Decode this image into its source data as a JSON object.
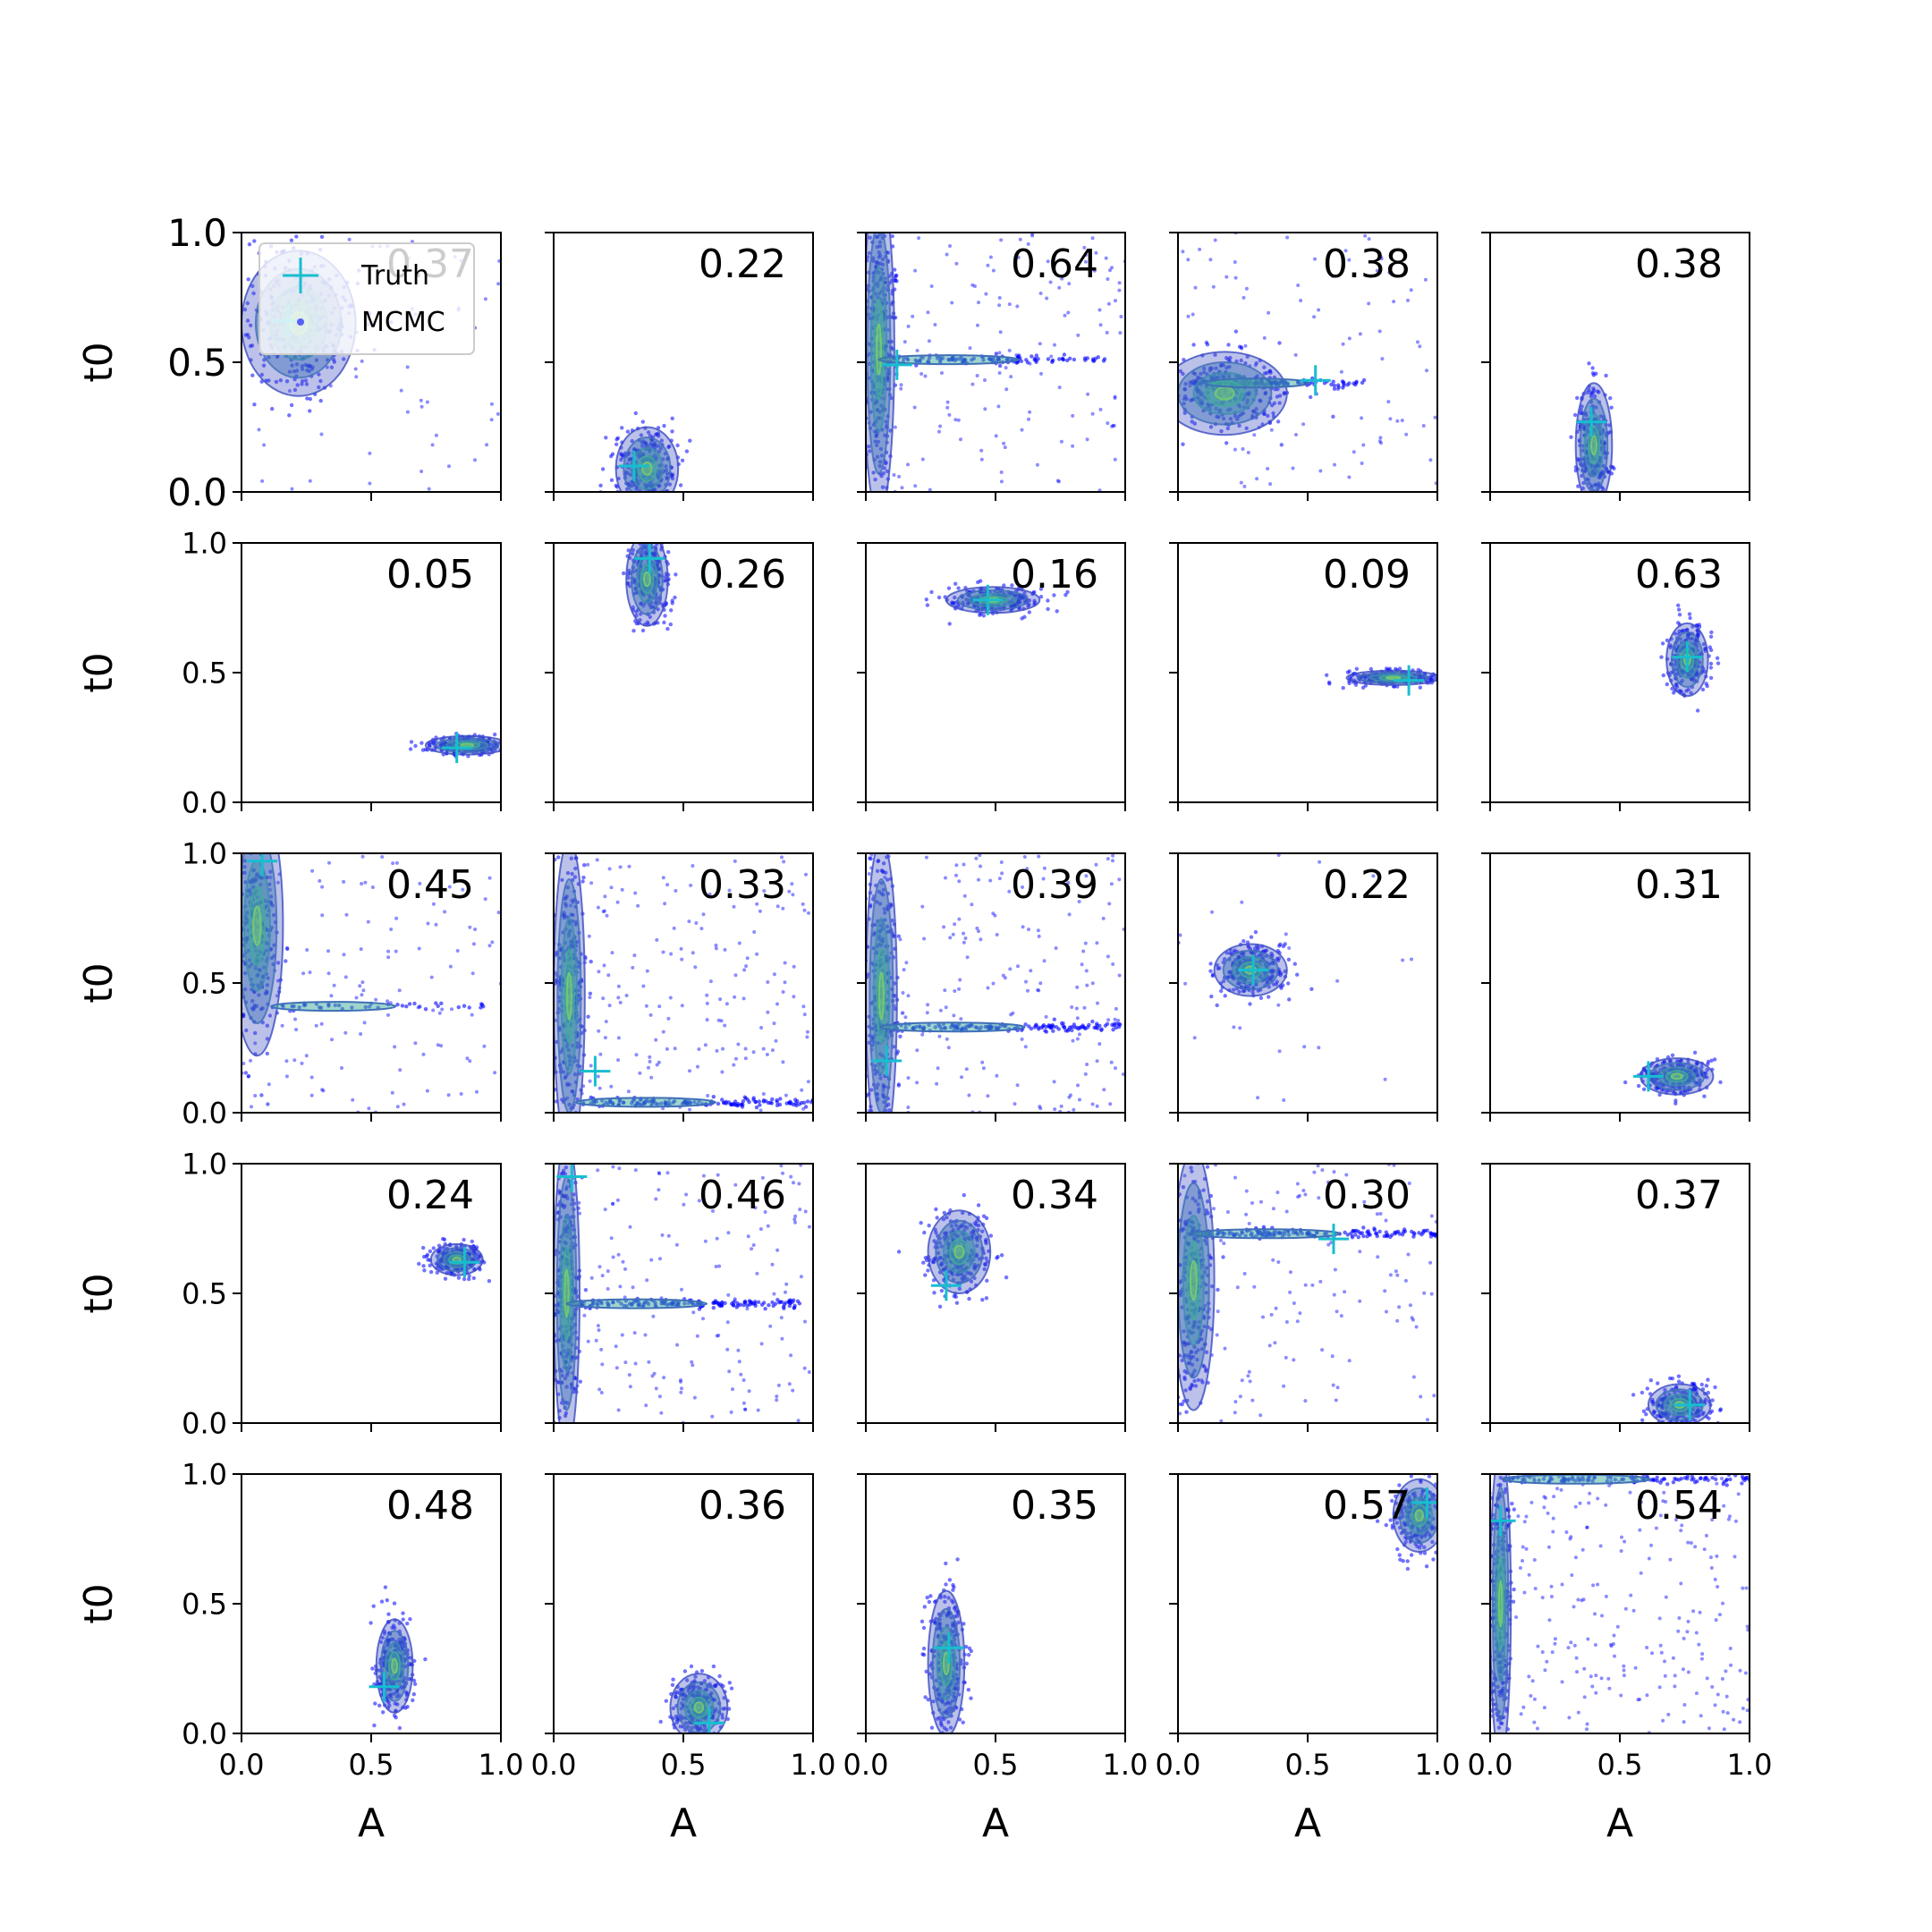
{
  "figure": {
    "background": "#ffffff",
    "grid_rows": 5,
    "grid_cols": 5,
    "shared_x": "columns",
    "shared_y": "rows"
  },
  "legend": {
    "placement": "upper-left of first panel",
    "entries": [
      {
        "label": "Truth",
        "marker": "plus",
        "color": "#17becf"
      },
      {
        "label": "MCMC",
        "marker": "dot",
        "color": "#0000ff"
      }
    ]
  },
  "colors": {
    "samples": "#0000ff",
    "truth": "#17becf",
    "density_outer": "#3b4cc0",
    "density_inner": "#44c48a"
  },
  "chart_data": {
    "type": "scatter",
    "xlabel": "A",
    "ylabel": "t0",
    "xlim": [
      0,
      1
    ],
    "ylim": [
      0,
      1
    ],
    "xticks": [
      "0.0",
      "0.5",
      "1.0"
    ],
    "yticks": [
      "0.0",
      "0.5",
      "1.0"
    ],
    "panels": [
      {
        "row": 0,
        "col": 0,
        "score": "0.37",
        "truth": [
          0.18,
          0.66
        ],
        "cluster": {
          "cx": 0.22,
          "cy": 0.65,
          "sx": 0.11,
          "sy": 0.14,
          "n": 320
        },
        "scatter_seed": 11,
        "scatter_n": 60
      },
      {
        "row": 0,
        "col": 1,
        "score": "0.22",
        "truth": [
          0.31,
          0.1
        ],
        "cluster": {
          "cx": 0.36,
          "cy": 0.09,
          "sx": 0.06,
          "sy": 0.08,
          "n": 280
        },
        "scatter_seed": 12,
        "scatter_n": 0
      },
      {
        "row": 0,
        "col": 2,
        "score": "0.64",
        "truth": [
          0.12,
          0.49
        ],
        "cluster": {
          "cx": 0.05,
          "cy": 0.55,
          "sx": 0.03,
          "sy": 0.32,
          "n": 320
        },
        "scatter_seed": 13,
        "scatter_n": 160,
        "band": {
          "y": 0.51,
          "x0": 0.05,
          "x1": 0.95,
          "n": 120
        }
      },
      {
        "row": 0,
        "col": 3,
        "score": "0.38",
        "truth": [
          0.53,
          0.43
        ],
        "cluster": {
          "cx": 0.18,
          "cy": 0.38,
          "sx": 0.12,
          "sy": 0.08,
          "n": 280
        },
        "scatter_seed": 14,
        "scatter_n": 90,
        "band": {
          "y": 0.42,
          "x0": 0.05,
          "x1": 0.72,
          "n": 110
        }
      },
      {
        "row": 0,
        "col": 4,
        "score": "0.38",
        "truth": [
          0.39,
          0.27
        ],
        "cluster": {
          "cx": 0.4,
          "cy": 0.18,
          "sx": 0.035,
          "sy": 0.12,
          "n": 280
        },
        "scatter_seed": 15,
        "scatter_n": 0
      },
      {
        "row": 1,
        "col": 0,
        "score": "0.05",
        "truth": [
          0.83,
          0.21
        ],
        "cluster": {
          "cx": 0.87,
          "cy": 0.22,
          "sx": 0.08,
          "sy": 0.018,
          "n": 240
        },
        "scatter_seed": 21,
        "scatter_n": 0
      },
      {
        "row": 1,
        "col": 1,
        "score": "0.26",
        "truth": [
          0.37,
          0.94
        ],
        "cluster": {
          "cx": 0.36,
          "cy": 0.86,
          "sx": 0.04,
          "sy": 0.09,
          "n": 280
        },
        "scatter_seed": 22,
        "scatter_n": 0
      },
      {
        "row": 1,
        "col": 2,
        "score": "0.16",
        "truth": [
          0.47,
          0.78
        ],
        "cluster": {
          "cx": 0.49,
          "cy": 0.78,
          "sx": 0.09,
          "sy": 0.025,
          "n": 240
        },
        "scatter_seed": 23,
        "scatter_n": 0
      },
      {
        "row": 1,
        "col": 3,
        "score": "0.09",
        "truth": [
          0.89,
          0.47
        ],
        "cluster": {
          "cx": 0.83,
          "cy": 0.48,
          "sx": 0.09,
          "sy": 0.014,
          "n": 240
        },
        "scatter_seed": 24,
        "scatter_n": 0
      },
      {
        "row": 1,
        "col": 4,
        "score": "0.63",
        "truth": [
          0.76,
          0.56
        ],
        "cluster": {
          "cx": 0.76,
          "cy": 0.55,
          "sx": 0.04,
          "sy": 0.07,
          "n": 260
        },
        "scatter_seed": 25,
        "scatter_n": 0
      },
      {
        "row": 2,
        "col": 0,
        "score": "0.45",
        "truth": [
          0.08,
          0.97
        ],
        "cluster": {
          "cx": 0.06,
          "cy": 0.72,
          "sx": 0.05,
          "sy": 0.25,
          "n": 300
        },
        "scatter_seed": 31,
        "scatter_n": 130,
        "band": {
          "y": 0.41,
          "x0": 0.15,
          "x1": 0.95,
          "n": 40
        }
      },
      {
        "row": 2,
        "col": 1,
        "score": "0.33",
        "truth": [
          0.16,
          0.16
        ],
        "cluster": {
          "cx": 0.06,
          "cy": 0.45,
          "sx": 0.03,
          "sy": 0.3,
          "n": 300
        },
        "scatter_seed": 32,
        "scatter_n": 190,
        "band": {
          "y": 0.04,
          "x0": 0.1,
          "x1": 1.0,
          "n": 150
        }
      },
      {
        "row": 2,
        "col": 2,
        "score": "0.39",
        "truth": [
          0.08,
          0.2
        ],
        "cluster": {
          "cx": 0.06,
          "cy": 0.45,
          "sx": 0.03,
          "sy": 0.3,
          "n": 280
        },
        "scatter_seed": 33,
        "scatter_n": 180,
        "band": {
          "y": 0.33,
          "x0": 0.05,
          "x1": 0.98,
          "n": 160
        }
      },
      {
        "row": 2,
        "col": 3,
        "score": "0.22",
        "truth": [
          0.29,
          0.55
        ],
        "cluster": {
          "cx": 0.28,
          "cy": 0.55,
          "sx": 0.07,
          "sy": 0.05,
          "n": 280
        },
        "scatter_seed": 34,
        "scatter_n": 25
      },
      {
        "row": 2,
        "col": 4,
        "score": "0.31",
        "truth": [
          0.61,
          0.14
        ],
        "cluster": {
          "cx": 0.72,
          "cy": 0.14,
          "sx": 0.07,
          "sy": 0.035,
          "n": 260
        },
        "scatter_seed": 35,
        "scatter_n": 0
      },
      {
        "row": 3,
        "col": 0,
        "score": "0.24",
        "truth": [
          0.86,
          0.62
        ],
        "cluster": {
          "cx": 0.83,
          "cy": 0.63,
          "sx": 0.05,
          "sy": 0.03,
          "n": 240
        },
        "scatter_seed": 41,
        "scatter_n": 0
      },
      {
        "row": 3,
        "col": 1,
        "score": "0.46",
        "truth": [
          0.07,
          0.95
        ],
        "cluster": {
          "cx": 0.05,
          "cy": 0.5,
          "sx": 0.025,
          "sy": 0.3,
          "n": 300
        },
        "scatter_seed": 42,
        "scatter_n": 170,
        "band": {
          "y": 0.46,
          "x0": 0.05,
          "x1": 0.95,
          "n": 170
        }
      },
      {
        "row": 3,
        "col": 2,
        "score": "0.34",
        "truth": [
          0.31,
          0.53
        ],
        "cluster": {
          "cx": 0.36,
          "cy": 0.66,
          "sx": 0.06,
          "sy": 0.08,
          "n": 280
        },
        "scatter_seed": 43,
        "scatter_n": 0
      },
      {
        "row": 3,
        "col": 3,
        "score": "0.30",
        "truth": [
          0.6,
          0.71
        ],
        "cluster": {
          "cx": 0.06,
          "cy": 0.55,
          "sx": 0.04,
          "sy": 0.25,
          "n": 280
        },
        "scatter_seed": 44,
        "scatter_n": 120,
        "band": {
          "y": 0.73,
          "x0": 0.05,
          "x1": 1.0,
          "n": 170
        }
      },
      {
        "row": 3,
        "col": 4,
        "score": "0.37",
        "truth": [
          0.77,
          0.07
        ],
        "cluster": {
          "cx": 0.73,
          "cy": 0.07,
          "sx": 0.06,
          "sy": 0.04,
          "n": 260
        },
        "scatter_seed": 45,
        "scatter_n": 0
      },
      {
        "row": 4,
        "col": 0,
        "score": "0.48",
        "truth": [
          0.55,
          0.18
        ],
        "cluster": {
          "cx": 0.59,
          "cy": 0.26,
          "sx": 0.035,
          "sy": 0.09,
          "n": 280
        },
        "scatter_seed": 51,
        "scatter_n": 0
      },
      {
        "row": 4,
        "col": 1,
        "score": "0.36",
        "truth": [
          0.6,
          0.04
        ],
        "cluster": {
          "cx": 0.56,
          "cy": 0.1,
          "sx": 0.055,
          "sy": 0.065,
          "n": 280
        },
        "scatter_seed": 52,
        "scatter_n": 0
      },
      {
        "row": 4,
        "col": 2,
        "score": "0.35",
        "truth": [
          0.32,
          0.33
        ],
        "cluster": {
          "cx": 0.31,
          "cy": 0.27,
          "sx": 0.035,
          "sy": 0.14,
          "n": 290
        },
        "scatter_seed": 53,
        "scatter_n": 0
      },
      {
        "row": 4,
        "col": 3,
        "score": "0.57",
        "truth": [
          0.96,
          0.89
        ],
        "cluster": {
          "cx": 0.93,
          "cy": 0.84,
          "sx": 0.05,
          "sy": 0.07,
          "n": 240
        },
        "scatter_seed": 54,
        "scatter_n": 0
      },
      {
        "row": 4,
        "col": 4,
        "score": "0.54",
        "truth": [
          0.04,
          0.82
        ],
        "cluster": {
          "cx": 0.04,
          "cy": 0.5,
          "sx": 0.02,
          "sy": 0.3,
          "n": 280
        },
        "scatter_seed": 55,
        "scatter_n": 230,
        "band": {
          "y": 0.98,
          "x0": 0.05,
          "x1": 1.0,
          "n": 120
        }
      }
    ]
  }
}
